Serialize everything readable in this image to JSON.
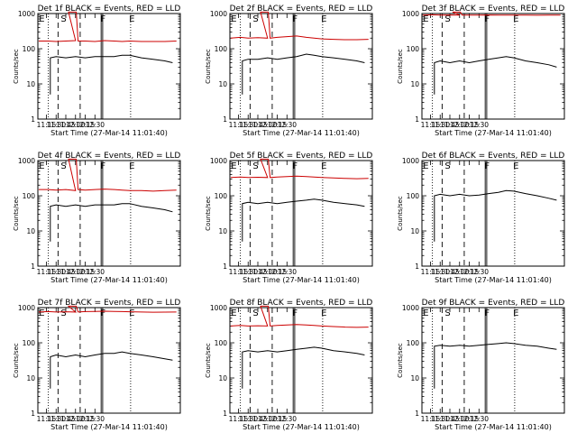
{
  "chart_data": [
    {
      "type": "line",
      "title": "Det 1f BLACK = Events, RED = LLD",
      "xlabel": "Start Time (27-Mar-14 11:01:40)",
      "ylabel": "Counts/sec",
      "xticks": [
        "11:15",
        "11:30",
        "11:45",
        "12:00",
        "12:15",
        "12:30"
      ],
      "ylim": [
        1,
        1000
      ],
      "yscale": "log",
      "yticks": [
        "1",
        "10",
        "100",
        "1000"
      ],
      "markers": [
        "E",
        "S",
        "F",
        "E"
      ],
      "series": [
        {
          "color": "#cc0000",
          "red_base": 165,
          "saa_top": 1100,
          "x": [
            11.05,
            11.3,
            11.5,
            11.75,
            12.0,
            12.25,
            12.5,
            12.75,
            13.0,
            13.2,
            13.4,
            13.7,
            14.0,
            14.3,
            14.6
          ],
          "y": [
            165,
            165,
            160,
            165,
            170,
            165,
            160,
            170,
            165,
            160,
            165,
            160,
            160,
            160,
            165
          ]
        },
        {
          "color": "#000000",
          "x": [
            11.35,
            11.5,
            11.75,
            12.0,
            12.25,
            12.5,
            12.75,
            13.0,
            13.2,
            13.4,
            13.7,
            14.0,
            14.3,
            14.5
          ],
          "y": [
            55,
            60,
            55,
            60,
            55,
            60,
            60,
            60,
            65,
            65,
            55,
            50,
            45,
            40
          ]
        }
      ]
    },
    {
      "type": "line",
      "title": "Det 2f BLACK = Events, RED = LLD",
      "xlabel": "Start Time (27-Mar-14 11:01:40)",
      "ylabel": "Counts/sec",
      "xticks": [
        "11:15",
        "11:30",
        "11:45",
        "12:00",
        "12:15",
        "12:30"
      ],
      "ylim": [
        1,
        1000
      ],
      "yscale": "log",
      "yticks": [
        "1",
        "10",
        "100",
        "1000"
      ],
      "markers": [
        "E",
        "S",
        "F",
        "E"
      ],
      "series": [
        {
          "color": "#cc0000",
          "red_base": 200,
          "saa_top": 1100,
          "x": [
            11.05,
            11.3,
            11.5,
            11.75,
            12.0,
            12.25,
            12.5,
            12.75,
            13.0,
            13.2,
            13.4,
            13.7,
            14.0,
            14.3,
            14.6
          ],
          "y": [
            200,
            210,
            200,
            205,
            200,
            210,
            220,
            230,
            210,
            200,
            190,
            185,
            180,
            180,
            185
          ]
        },
        {
          "color": "#000000",
          "x": [
            11.35,
            11.5,
            11.75,
            12.0,
            12.25,
            12.5,
            12.75,
            13.0,
            13.2,
            13.4,
            13.7,
            14.0,
            14.3,
            14.5
          ],
          "y": [
            45,
            50,
            50,
            55,
            50,
            55,
            60,
            70,
            65,
            60,
            55,
            50,
            45,
            40
          ]
        }
      ]
    },
    {
      "type": "line",
      "title": "Det 3f BLACK = Events, RED = LLD",
      "xlabel": "Start Time (27-Mar-14 11:01:40)",
      "ylabel": "Counts/sec",
      "xticks": [
        "11:15",
        "11:30",
        "11:45",
        "12:00",
        "12:15",
        "12:30"
      ],
      "ylim": [
        1,
        1000
      ],
      "yscale": "log",
      "yticks": [
        "1",
        "10",
        "100",
        "1000"
      ],
      "markers": [
        "E",
        "S",
        "F",
        "E"
      ],
      "series": [
        {
          "color": "#cc0000",
          "red_base": 900,
          "saa_top": 1100,
          "x": [
            11.05,
            11.3,
            11.5,
            11.75,
            12.0,
            12.25,
            12.5,
            12.75,
            13.0,
            13.2,
            13.4,
            13.7,
            14.0,
            14.3,
            14.6
          ],
          "y": [
            900,
            920,
            900,
            910,
            900,
            905,
            900,
            910,
            900,
            905,
            900,
            900,
            895,
            900,
            905
          ]
        },
        {
          "color": "#000000",
          "x": [
            11.35,
            11.5,
            11.75,
            12.0,
            12.25,
            12.5,
            12.75,
            13.0,
            13.2,
            13.4,
            13.7,
            14.0,
            14.3,
            14.5
          ],
          "y": [
            40,
            45,
            40,
            45,
            40,
            45,
            50,
            55,
            60,
            55,
            45,
            40,
            35,
            30
          ]
        }
      ]
    },
    {
      "type": "line",
      "title": "Det 4f BLACK = Events, RED = LLD",
      "xlabel": "Start Time (27-Mar-14 11:01:40)",
      "ylabel": "Counts/sec",
      "xticks": [
        "11:15",
        "11:30",
        "11:45",
        "12:00",
        "12:15",
        "12:30"
      ],
      "ylim": [
        1,
        1000
      ],
      "yscale": "log",
      "yticks": [
        "1",
        "10",
        "100",
        "1000"
      ],
      "markers": [
        "E",
        "S",
        "F",
        "E"
      ],
      "series": [
        {
          "color": "#cc0000",
          "red_base": 150,
          "saa_top": 1100,
          "x": [
            11.05,
            11.3,
            11.5,
            11.75,
            12.0,
            12.25,
            12.5,
            12.75,
            13.0,
            13.2,
            13.4,
            13.7,
            14.0,
            14.3,
            14.6
          ],
          "y": [
            150,
            150,
            145,
            150,
            140,
            145,
            150,
            155,
            150,
            145,
            140,
            140,
            135,
            140,
            145
          ]
        },
        {
          "color": "#000000",
          "x": [
            11.35,
            11.5,
            11.75,
            12.0,
            12.25,
            12.5,
            12.75,
            13.0,
            13.2,
            13.4,
            13.7,
            14.0,
            14.3,
            14.5
          ],
          "y": [
            50,
            55,
            50,
            55,
            50,
            55,
            55,
            55,
            60,
            60,
            50,
            45,
            40,
            35
          ]
        }
      ]
    },
    {
      "type": "line",
      "title": "Det 5f BLACK = Events, RED = LLD",
      "xlabel": "Start Time (27-Mar-14 11:01:40)",
      "ylabel": "Counts/sec",
      "xticks": [
        "11:15",
        "11:30",
        "11:45",
        "12:00",
        "12:15",
        "12:30"
      ],
      "ylim": [
        1,
        1000
      ],
      "yscale": "log",
      "yticks": [
        "1",
        "10",
        "100",
        "1000"
      ],
      "markers": [
        "E",
        "S",
        "F",
        "E"
      ],
      "series": [
        {
          "color": "#cc0000",
          "red_base": 330,
          "saa_top": 1100,
          "x": [
            11.05,
            11.3,
            11.5,
            11.75,
            12.0,
            12.25,
            12.5,
            12.75,
            13.0,
            13.2,
            13.4,
            13.7,
            14.0,
            14.3,
            14.6
          ],
          "y": [
            330,
            340,
            330,
            335,
            330,
            340,
            350,
            360,
            350,
            340,
            330,
            320,
            310,
            305,
            310
          ]
        },
        {
          "color": "#000000",
          "x": [
            11.35,
            11.5,
            11.75,
            12.0,
            12.25,
            12.5,
            12.75,
            13.0,
            13.2,
            13.4,
            13.7,
            14.0,
            14.3,
            14.5
          ],
          "y": [
            60,
            65,
            60,
            65,
            60,
            65,
            70,
            75,
            80,
            75,
            65,
            60,
            55,
            50
          ]
        }
      ]
    },
    {
      "type": "line",
      "title": "Det 6f BLACK = Events, RED = LLD",
      "xlabel": "Start Time (27-Mar-14 11:01:40)",
      "ylabel": "Counts/sec",
      "xticks": [
        "11:15",
        "11:30",
        "11:45",
        "12:00",
        "12:15",
        "12:30"
      ],
      "ylim": [
        1,
        1000
      ],
      "yscale": "log",
      "yticks": [
        "1",
        "10",
        "100",
        "1000"
      ],
      "markers": [
        "E",
        "S",
        "F",
        "E"
      ],
      "series": [
        {
          "color": "#000000",
          "x": [
            11.35,
            11.5,
            11.75,
            12.0,
            12.25,
            12.5,
            12.75,
            13.0,
            13.2,
            13.4,
            13.7,
            14.0,
            14.3,
            14.5
          ],
          "y": [
            100,
            110,
            100,
            110,
            100,
            105,
            115,
            125,
            140,
            135,
            115,
            100,
            85,
            75
          ]
        }
      ]
    },
    {
      "type": "line",
      "title": "Det 7f BLACK = Events, RED = LLD",
      "xlabel": "Start Time (27-Mar-14 11:01:40)",
      "ylabel": "Counts/sec",
      "xticks": [
        "11:15",
        "11:30",
        "11:45",
        "12:00",
        "12:15",
        "12:30"
      ],
      "ylim": [
        1,
        1000
      ],
      "yscale": "log",
      "yticks": [
        "1",
        "10",
        "100",
        "1000"
      ],
      "markers": [
        "E",
        "S",
        "F",
        "E"
      ],
      "series": [
        {
          "color": "#cc0000",
          "red_base": 750,
          "saa_top": 1100,
          "x": [
            11.05,
            11.3,
            11.5,
            11.75,
            12.0,
            12.25,
            12.5,
            12.75,
            13.0,
            13.2,
            13.4,
            13.7,
            14.0,
            14.3,
            14.6
          ],
          "y": [
            750,
            770,
            750,
            760,
            750,
            770,
            780,
            790,
            780,
            770,
            760,
            750,
            740,
            745,
            750
          ]
        },
        {
          "color": "#000000",
          "x": [
            11.35,
            11.5,
            11.75,
            12.0,
            12.25,
            12.5,
            12.75,
            13.0,
            13.2,
            13.4,
            13.7,
            14.0,
            14.3,
            14.5
          ],
          "y": [
            40,
            45,
            40,
            45,
            40,
            45,
            50,
            50,
            55,
            50,
            45,
            40,
            35,
            32
          ]
        }
      ]
    },
    {
      "type": "line",
      "title": "Det 8f BLACK = Events, RED = LLD",
      "xlabel": "Start Time (27-Mar-14 11:01:40)",
      "ylabel": "Counts/sec",
      "xticks": [
        "11:15",
        "11:30",
        "11:45",
        "12:00",
        "12:15",
        "12:30"
      ],
      "ylim": [
        1,
        1000
      ],
      "yscale": "log",
      "yticks": [
        "1",
        "10",
        "100",
        "1000"
      ],
      "markers": [
        "E",
        "S",
        "F",
        "E"
      ],
      "series": [
        {
          "color": "#cc0000",
          "red_base": 300,
          "saa_top": 1100,
          "x": [
            11.05,
            11.3,
            11.5,
            11.75,
            12.0,
            12.25,
            12.5,
            12.75,
            13.0,
            13.2,
            13.4,
            13.7,
            14.0,
            14.3,
            14.6
          ],
          "y": [
            300,
            310,
            300,
            305,
            300,
            310,
            320,
            330,
            320,
            310,
            300,
            290,
            280,
            275,
            280
          ]
        },
        {
          "color": "#000000",
          "x": [
            11.35,
            11.5,
            11.75,
            12.0,
            12.25,
            12.5,
            12.75,
            13.0,
            13.2,
            13.4,
            13.7,
            14.0,
            14.3,
            14.5
          ],
          "y": [
            55,
            60,
            55,
            60,
            55,
            60,
            65,
            70,
            75,
            70,
            60,
            55,
            50,
            45
          ]
        }
      ]
    },
    {
      "type": "line",
      "title": "Det 9f BLACK = Events, RED = LLD",
      "xlabel": "Start Time (27-Mar-14 11:01:40)",
      "ylabel": "Counts/sec",
      "xticks": [
        "11:15",
        "11:30",
        "11:45",
        "12:00",
        "12:15",
        "12:30"
      ],
      "ylim": [
        1,
        1000
      ],
      "yscale": "log",
      "yticks": [
        "1",
        "10",
        "100",
        "1000"
      ],
      "markers": [
        "E",
        "S",
        "F",
        "E"
      ],
      "series": [
        {
          "color": "#000000",
          "x": [
            11.35,
            11.5,
            11.75,
            12.0,
            12.25,
            12.5,
            12.75,
            13.0,
            13.2,
            13.4,
            13.7,
            14.0,
            14.3,
            14.5
          ],
          "y": [
            80,
            85,
            80,
            85,
            80,
            85,
            90,
            95,
            100,
            95,
            85,
            80,
            70,
            65
          ]
        }
      ]
    }
  ]
}
